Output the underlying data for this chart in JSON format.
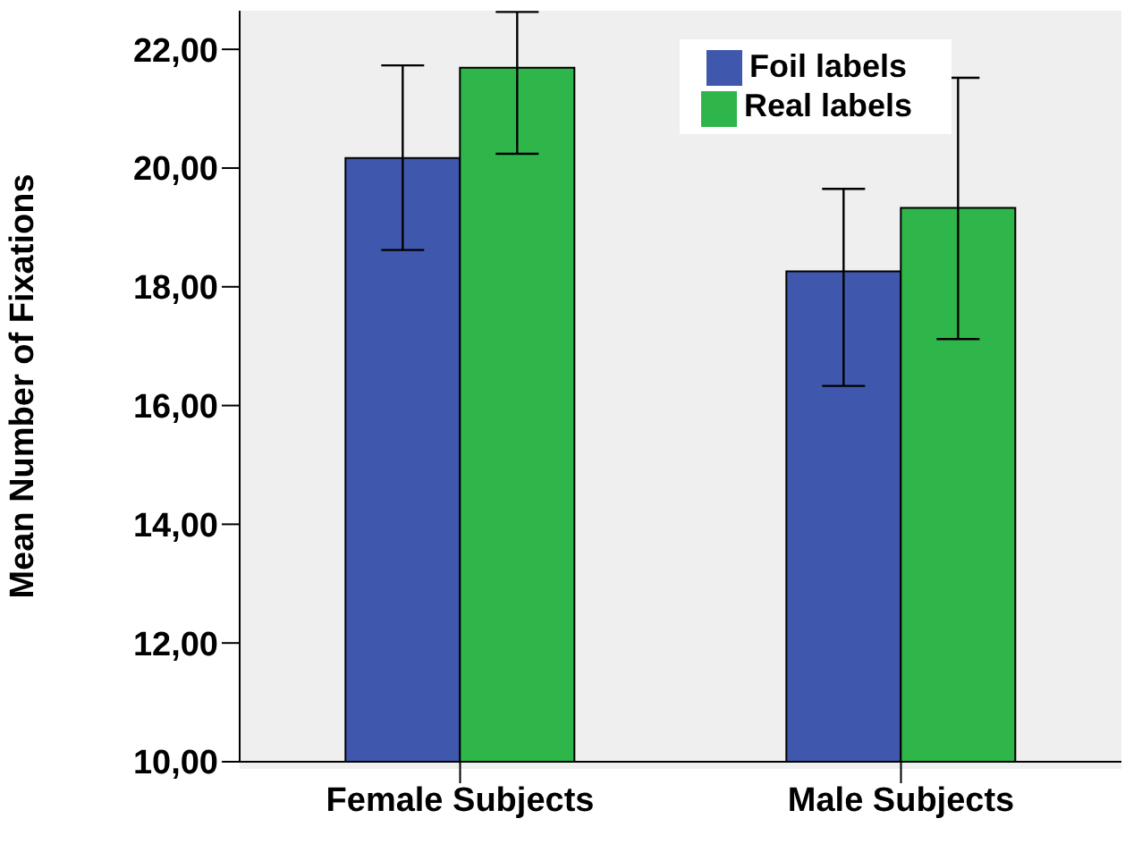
{
  "chart_data": {
    "type": "bar",
    "ylabel": "Mean Number of Fixations",
    "categories": [
      "Female Subjects",
      "Male Subjects"
    ],
    "series": [
      {
        "name": "Foil labels",
        "color": "#3f58ad",
        "values": [
          20.17,
          18.26
        ],
        "errors": [
          [
            18.62,
            21.73
          ],
          [
            16.33,
            19.65
          ]
        ]
      },
      {
        "name": "Real labels",
        "color": "#2fb64a",
        "values": [
          21.69,
          19.33
        ],
        "errors": [
          [
            20.24,
            22.63
          ],
          [
            17.12,
            21.52
          ]
        ]
      }
    ],
    "ylim": [
      10,
      22.65
    ],
    "yticks": [
      {
        "value": 10,
        "label": "10,00"
      },
      {
        "value": 12,
        "label": "12,00"
      },
      {
        "value": 14,
        "label": "14,00"
      },
      {
        "value": 16,
        "label": "16,00"
      },
      {
        "value": 18,
        "label": "18,00"
      },
      {
        "value": 20,
        "label": "20,00"
      },
      {
        "value": 22,
        "label": "22,00"
      }
    ],
    "grid": false,
    "legend": "top right"
  }
}
